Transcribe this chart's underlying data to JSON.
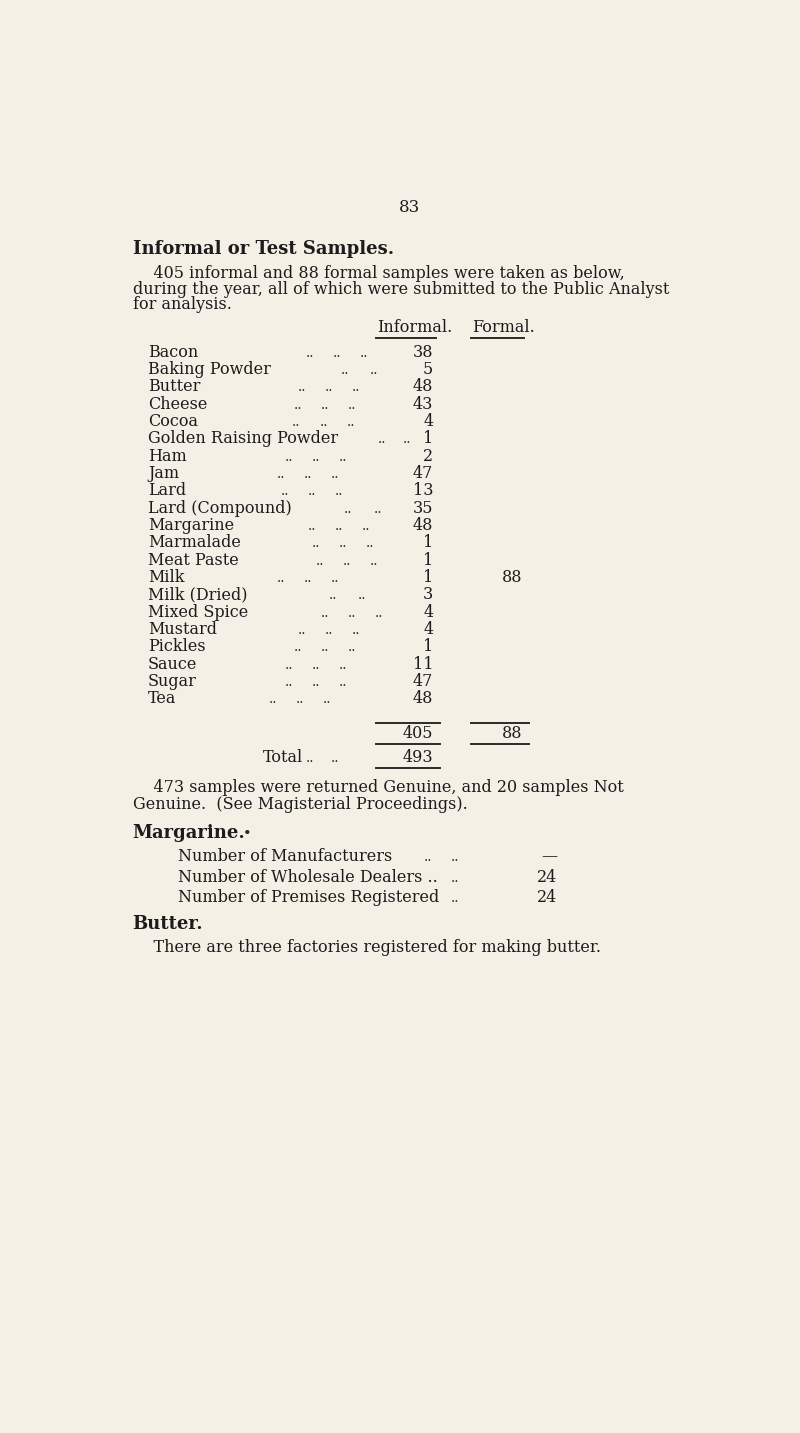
{
  "page_number": "83",
  "bg_color": "#f5f0e6",
  "title": "Informal or Test Samples.",
  "intro_text_1": "    405 informal and 88 formal samples were taken as below,",
  "intro_text_2": "during the year, all of which were submitted to the Public Analyst",
  "intro_text_3": "for analysis.",
  "col_header_informal": "Informal.",
  "col_header_formal": "Formal.",
  "items": [
    {
      "name": "Bacon",
      "dots_informal": ".. .. ..",
      "informal": "38",
      "formal": ""
    },
    {
      "name": "Baking Powder",
      "dots_informal": ".. ..",
      "informal": "5",
      "formal": ""
    },
    {
      "name": "Butter",
      "dots_informal": ".. .. ..",
      "informal": "48",
      "formal": ""
    },
    {
      "name": "Cheese",
      "dots_informal": ".. .. ..",
      "informal": "43",
      "formal": ""
    },
    {
      "name": "Cocoa",
      "dots_informal": ".. .. ..",
      "informal": "4",
      "formal": ""
    },
    {
      "name": "Golden Raising Powder",
      "dots_informal": "..",
      "informal": "1",
      "formal": ""
    },
    {
      "name": "Ham",
      "dots_informal": ".. .. ..",
      "informal": "2",
      "formal": ""
    },
    {
      "name": "Jam",
      "dots_informal": ".. .. ..",
      "informal": "47",
      "formal": ""
    },
    {
      "name": "Lard",
      "dots_informal": ".. .. ..",
      "informal": "13",
      "formal": ""
    },
    {
      "name": "Lard (Compound)",
      "dots_informal": ".. ..",
      "informal": "35",
      "formal": ""
    },
    {
      "name": "Margarine",
      "dots_informal": ".. .. ..",
      "informal": "48",
      "formal": ""
    },
    {
      "name": "Marmalade",
      "dots_informal": ".. .. ..",
      "informal": "1",
      "formal": ""
    },
    {
      "name": "Meat Paste",
      "dots_informal": ".. .. ..",
      "informal": "1",
      "formal": ""
    },
    {
      "name": "Milk",
      "dots_informal": ".. .. ..",
      "informal": "1",
      "formal": "88"
    },
    {
      "name": "Milk (Dried)",
      "dots_informal": ".. .. ..",
      "informal": "3",
      "formal": ""
    },
    {
      "name": "Mixed Spice",
      "dots_informal": ".. .. ..",
      "informal": "4",
      "formal": ""
    },
    {
      "name": "Mustard",
      "dots_informal": ".. .. ..",
      "informal": "4",
      "formal": ""
    },
    {
      "name": "Pickles",
      "dots_informal": ".. .. ..",
      "informal": "1",
      "formal": ""
    },
    {
      "name": "Sauce",
      "dots_informal": ".. .. ..",
      "informal": "11",
      "formal": ""
    },
    {
      "name": "Sugar",
      "dots_informal": ".. .. ..",
      "informal": "47",
      "formal": ""
    },
    {
      "name": "Tea",
      "dots_informal": ".. .. ..",
      "informal": "48",
      "formal": ""
    }
  ],
  "total_informal": "405",
  "total_formal": "88",
  "total_label": "Total",
  "grand_total": "493",
  "footnote_1": "    473 samples were returned Genuine, and 20 samples Not",
  "footnote_2": "Genuine.  (See Magisterial Proceedings).",
  "margarine_title": "Margarine.",
  "margarine_note": " •",
  "marg_item1_label": "Number of Manufacturers",
  "marg_item1_dots": ".. ..",
  "marg_item1_value": "—",
  "marg_item2_label": "Number of Wholesale Dealers ..",
  "marg_item2_dots": "..",
  "marg_item2_value": "24",
  "marg_item3_label": "Number of Premises Registered",
  "marg_item3_dots": "..",
  "marg_item3_value": "24",
  "butter_title": "Butter.",
  "butter_text": "    There are three factories registered for making butter.",
  "text_color": "#1c1c1c",
  "dots_color": "#2a2a2a",
  "line_color": "#1c1c1c"
}
